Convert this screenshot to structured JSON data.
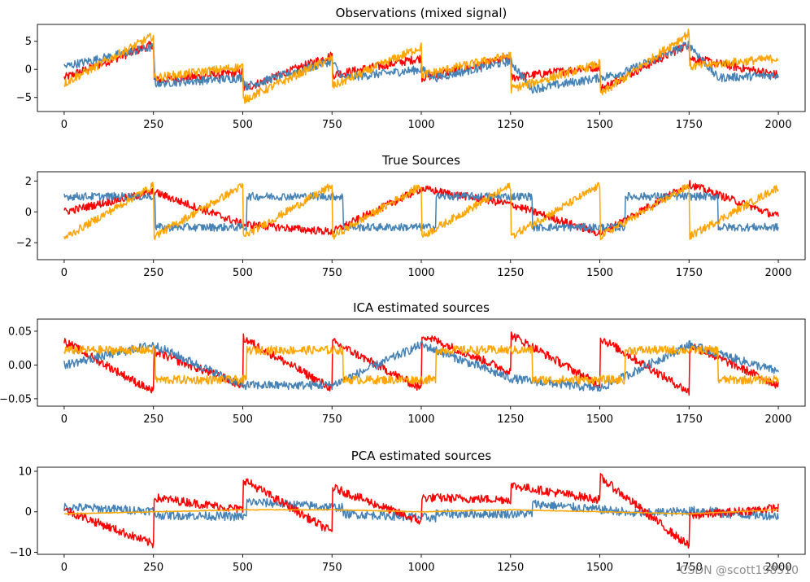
{
  "colors": {
    "red": "#ff0000",
    "blue": "#4682b4",
    "orange": "#ffa500"
  },
  "watermark": "CSDN @scott198510",
  "chart_data": [
    {
      "type": "line",
      "title": "Observations (mixed signal)",
      "xlabel": "",
      "ylabel": "",
      "xlim": [
        -75,
        2075
      ],
      "ylim": [
        -7.5,
        8
      ],
      "xticks": [
        0,
        250,
        500,
        750,
        1000,
        1250,
        1500,
        1750,
        2000
      ],
      "yticks": [
        5,
        0,
        -5
      ],
      "yticklabels": [
        "5",
        "0",
        "−5"
      ],
      "series": [
        {
          "color": "#ff0000",
          "x": [
            0,
            250,
            251,
            500,
            501,
            750,
            751,
            1000,
            1001,
            1250,
            1251,
            1500,
            1501,
            1750,
            1751,
            2000
          ],
          "y": [
            -1.5,
            4.5,
            -2,
            -0.5,
            -3.5,
            2.5,
            -1,
            2,
            -1.5,
            2,
            -1.5,
            0.5,
            -3.5,
            4.5,
            2,
            -1
          ]
        },
        {
          "color": "#4682b4",
          "x": [
            0,
            250,
            255,
            500,
            510,
            750,
            780,
            1000,
            1040,
            1250,
            1310,
            1500,
            1570,
            1750,
            1830,
            2000
          ],
          "y": [
            0.5,
            4,
            -2.5,
            -1.5,
            -3,
            1.5,
            -1.5,
            0,
            -1.5,
            1.5,
            -3.5,
            -1.5,
            -0.5,
            4.5,
            -1.5,
            -1
          ]
        },
        {
          "color": "#ffa500",
          "x": [
            0,
            250,
            251,
            500,
            501,
            750,
            751,
            1000,
            1001,
            1250,
            1251,
            1500,
            1501,
            1750,
            1751,
            2000
          ],
          "y": [
            -2.5,
            6,
            -1.5,
            0.5,
            -5.5,
            2,
            -3,
            4,
            -1,
            2.5,
            -3.5,
            1,
            -4.5,
            6.5,
            0.5,
            2
          ]
        }
      ]
    },
    {
      "type": "line",
      "title": "True Sources",
      "xlabel": "",
      "ylabel": "",
      "xlim": [
        -75,
        2075
      ],
      "ylim": [
        -3.1,
        2.6
      ],
      "xticks": [
        0,
        250,
        500,
        750,
        1000,
        1250,
        1500,
        1750,
        2000
      ],
      "yticks": [
        2,
        0,
        -2
      ],
      "yticklabels": [
        "2",
        "0",
        "−2"
      ],
      "series": [
        {
          "color": "#ff0000",
          "x": [
            0,
            250,
            500,
            750,
            1000,
            1250,
            1500,
            1750,
            2000
          ],
          "y": [
            0,
            1.3,
            -0.8,
            -1.3,
            1.5,
            0.5,
            -1.4,
            1.8,
            -0.3
          ]
        },
        {
          "color": "#4682b4",
          "x": [
            0,
            255,
            256,
            510,
            511,
            780,
            781,
            1040,
            1041,
            1310,
            1311,
            1570,
            1571,
            1830,
            1831,
            2000
          ],
          "y": [
            1,
            1,
            -1,
            -1,
            1,
            1,
            -1,
            -1,
            1,
            1,
            -1,
            -1,
            1,
            1,
            -1,
            -1
          ]
        },
        {
          "color": "#ffa500",
          "x": [
            0,
            250,
            251,
            500,
            501,
            750,
            751,
            1000,
            1001,
            1250,
            1251,
            1500,
            1501,
            1750,
            1751,
            2000
          ],
          "y": [
            -1.7,
            1.7,
            -1.6,
            1.7,
            -1.6,
            1.7,
            -1.6,
            1.7,
            -1.6,
            1.7,
            -1.6,
            1.7,
            -1.6,
            1.7,
            -1.6,
            1.6
          ]
        }
      ]
    },
    {
      "type": "line",
      "title": "ICA estimated sources",
      "xlabel": "",
      "ylabel": "",
      "xlim": [
        -75,
        2075
      ],
      "ylim": [
        -0.061,
        0.068
      ],
      "xticks": [
        0,
        250,
        500,
        750,
        1000,
        1250,
        1500,
        1750,
        2000
      ],
      "yticks": [
        0.05,
        0.0,
        -0.05
      ],
      "yticklabels": [
        "0.05",
        "0.00",
        "−0.05"
      ],
      "series": [
        {
          "color": "#ff0000",
          "x": [
            0,
            250,
            251,
            500,
            501,
            750,
            751,
            1000,
            1001,
            1250,
            1251,
            1500,
            1501,
            1750,
            1751,
            2000
          ],
          "y": [
            0.035,
            -0.04,
            0.02,
            -0.03,
            0.04,
            -0.035,
            0.035,
            -0.035,
            0.045,
            -0.01,
            0.045,
            -0.03,
            0.04,
            -0.04,
            0.03,
            -0.03
          ]
        },
        {
          "color": "#4682b4",
          "x": [
            0,
            250,
            500,
            750,
            1000,
            1250,
            1500,
            1750,
            2000
          ],
          "y": [
            0,
            0.03,
            -0.03,
            -0.03,
            0.03,
            -0.02,
            -0.035,
            0.03,
            -0.01
          ]
        },
        {
          "color": "#ffa500",
          "x": [
            0,
            255,
            256,
            510,
            511,
            780,
            781,
            1040,
            1041,
            1310,
            1311,
            1570,
            1571,
            1830,
            1831,
            2000
          ],
          "y": [
            0.022,
            0.022,
            -0.022,
            -0.022,
            0.022,
            0.022,
            -0.022,
            -0.022,
            0.022,
            0.022,
            -0.022,
            -0.022,
            0.022,
            0.022,
            -0.022,
            -0.022
          ]
        }
      ]
    },
    {
      "type": "line",
      "title": "PCA estimated sources",
      "xlabel": "",
      "ylabel": "",
      "xlim": [
        -75,
        2075
      ],
      "ylim": [
        -10.5,
        11
      ],
      "xticks": [
        0,
        250,
        500,
        750,
        1000,
        1250,
        1500,
        1750,
        2000
      ],
      "yticks": [
        10,
        0,
        -10
      ],
      "yticklabels": [
        "10",
        "0",
        "−10"
      ],
      "series": [
        {
          "color": "#4682b4",
          "x": [
            0,
            255,
            256,
            510,
            511,
            780,
            781,
            1040,
            1041,
            1310,
            1311,
            1570,
            1571,
            1830,
            1831,
            2000
          ],
          "y": [
            1.2,
            0.2,
            -0.8,
            -1.2,
            2.5,
            1,
            -0.5,
            -1.5,
            -0.5,
            -0.5,
            2,
            0,
            -0.5,
            0.5,
            -0.5,
            -1
          ]
        },
        {
          "color": "#ff0000",
          "x": [
            0,
            250,
            251,
            500,
            501,
            750,
            751,
            1000,
            1001,
            1250,
            1251,
            1500,
            1501,
            1750,
            1751,
            2000
          ],
          "y": [
            0.5,
            -8,
            3.5,
            0.5,
            8,
            -5,
            6,
            -2.5,
            3.5,
            3,
            6.5,
            3,
            8.5,
            -8.5,
            -1,
            1
          ]
        },
        {
          "color": "#ffa500",
          "x": [
            0,
            250,
            500,
            750,
            1000,
            1250,
            1500,
            1750,
            2000
          ],
          "y": [
            -0.5,
            0,
            0.5,
            0.5,
            0,
            0.5,
            0,
            -0.5,
            0.5
          ]
        }
      ]
    }
  ]
}
